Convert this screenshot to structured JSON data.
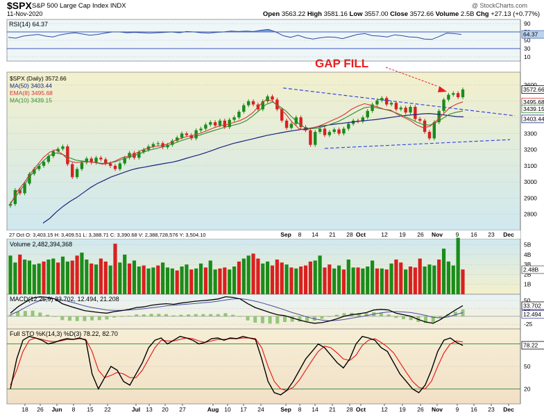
{
  "header": {
    "symbol": "$SPX",
    "subtitle": "S&P 500 Large Cap Index  INDX",
    "date": "11-Nov-2020",
    "credit": "@ StockCharts.com",
    "open_label": "Open",
    "open": "3563.22",
    "high_label": "High",
    "high": "3581.16",
    "low_label": "Low",
    "low": "3557.00",
    "close_label": "Close",
    "close": "3572.66",
    "volume_label": "Volume",
    "volume": "2.5B",
    "chg_label": "Chg",
    "chg": "+27.13 (+0.77%)"
  },
  "colors": {
    "up": "#1a8c1a",
    "down": "#d92020",
    "ma50": "#1a237e",
    "ema8": "#d93333",
    "ma10": "#2e8b2e",
    "trendline": "#3344dd",
    "annotation": "#e62020",
    "rsi_fill": "#5b8fd6",
    "sto_k": "#000000",
    "sto_d": "#e62020",
    "macd_line": "#000000",
    "macd_signal": "#4b4ba0",
    "hist": "#7bbd5c"
  },
  "chart_data": [
    {
      "type": "line",
      "panel": "rsi",
      "legend": "RSI(14) 64.37",
      "ylim": [
        0,
        100
      ],
      "ticks": [
        10,
        30,
        50,
        70,
        90
      ],
      "tag": "64.37",
      "values": [
        57,
        55,
        60,
        62,
        64,
        60,
        58,
        63,
        66,
        68,
        65,
        62,
        64,
        67,
        70,
        70,
        68,
        69,
        68,
        67,
        68,
        69,
        70,
        68,
        71,
        70,
        68,
        67,
        69,
        70,
        72,
        71,
        72,
        71,
        74,
        76,
        70,
        61,
        57,
        62,
        56,
        53,
        56,
        58,
        57,
        54,
        59,
        64,
        66,
        61,
        60,
        58,
        63,
        61,
        58,
        57,
        53,
        52,
        59,
        67,
        66,
        64
      ]
    },
    {
      "type": "candlestick",
      "panel": "price",
      "legend": [
        "$SPX (Daily) 3572.66",
        "MA(50) 3403.44",
        "EMA(8) 3495.68",
        "MA(10) 3439.15"
      ],
      "ylim": [
        2700,
        3680
      ],
      "ticks": [
        2800,
        2900,
        3000,
        3100,
        3200,
        3300,
        3400,
        3500,
        3600
      ],
      "tags": [
        "3572.66",
        "3495.68",
        "3439.15",
        "3403.44"
      ],
      "ohlc_readout": "27 Oct  O: 3,403.15  H: 3,409.51  L: 3,388.71  C: 3,390.68  V: 2,388,728,576  Y: 3,504.10",
      "annotation": "GAP FILL",
      "close": [
        2863,
        2950,
        2930,
        2990,
        3050,
        3080,
        3100,
        3125,
        3160,
        3190,
        3205,
        3220,
        3110,
        3030,
        3080,
        3120,
        3145,
        3120,
        3150,
        3140,
        3115,
        3100,
        3080,
        3115,
        3150,
        3180,
        3150,
        3185,
        3200,
        3220,
        3235,
        3240,
        3215,
        3230,
        3255,
        3275,
        3300,
        3290,
        3270,
        3320,
        3330,
        3355,
        3370,
        3350,
        3380,
        3340,
        3385,
        3400,
        3435,
        3475,
        3500,
        3480,
        3450,
        3500,
        3530,
        3510,
        3450,
        3380,
        3335,
        3360,
        3400,
        3340,
        3320,
        3230,
        3310,
        3330,
        3290,
        3310,
        3325,
        3300,
        3330,
        3360,
        3380,
        3375,
        3400,
        3440,
        3480,
        3505,
        3520,
        3480,
        3490,
        3450,
        3460,
        3430,
        3465,
        3390,
        3380,
        3310,
        3270,
        3370,
        3440,
        3510,
        3540,
        3550,
        3525,
        3573
      ],
      "ma50": [
        2745,
        2775,
        2815,
        2850,
        2880,
        2905,
        2935,
        2965,
        2990,
        3010,
        3030,
        3045,
        3060,
        3075,
        3085,
        3092,
        3100,
        3108,
        3115,
        3122,
        3132,
        3145,
        3157,
        3168,
        3182,
        3196,
        3212,
        3225,
        3238,
        3248,
        3258,
        3268,
        3278,
        3288,
        3296,
        3304,
        3312,
        3318,
        3325,
        3330,
        3338,
        3346,
        3352,
        3358,
        3363,
        3368,
        3373,
        3378,
        3382,
        3386,
        3392,
        3398,
        3404,
        3410,
        3414,
        3418,
        3422,
        3424,
        3420,
        3416,
        3410,
        3405,
        3403
      ],
      "ema8": [
        2860,
        2940,
        2990,
        3050,
        3100,
        3150,
        3185,
        3200,
        3170,
        3130,
        3120,
        3125,
        3125,
        3120,
        3110,
        3115,
        3130,
        3150,
        3160,
        3175,
        3195,
        3210,
        3220,
        3225,
        3235,
        3255,
        3270,
        3282,
        3290,
        3302,
        3318,
        3335,
        3348,
        3355,
        3368,
        3380,
        3400,
        3430,
        3475,
        3510,
        3500,
        3460,
        3420,
        3370,
        3330,
        3320,
        3335,
        3345,
        3362,
        3380,
        3398,
        3420,
        3450,
        3470,
        3485,
        3475,
        3465,
        3450,
        3445,
        3420,
        3400,
        3380,
        3352,
        3335,
        3345,
        3380,
        3420,
        3460,
        3482,
        3496
      ],
      "ma10": [
        2870,
        2920,
        2975,
        3035,
        3085,
        3130,
        3165,
        3180,
        3170,
        3150,
        3135,
        3130,
        3125,
        3120,
        3115,
        3118,
        3125,
        3140,
        3152,
        3165,
        3180,
        3195,
        3205,
        3215,
        3225,
        3240,
        3255,
        3268,
        3280,
        3292,
        3305,
        3318,
        3330,
        3342,
        3352,
        3362,
        3380,
        3410,
        3445,
        3480,
        3495,
        3470,
        3440,
        3400,
        3360,
        3335,
        3330,
        3335,
        3345,
        3360,
        3375,
        3395,
        3418,
        3440,
        3460,
        3465,
        3458,
        3450,
        3440,
        3425,
        3408,
        3390,
        3370,
        3355,
        3352,
        3370,
        3395,
        3420,
        3432,
        3439
      ],
      "trendlines": [
        {
          "from": [
            0,
            3582
          ],
          "to": [
            1,
            3410
          ]
        },
        {
          "from": [
            0,
            3208
          ],
          "to": [
            1,
            3262
          ]
        }
      ]
    },
    {
      "type": "bar",
      "panel": "volume",
      "legend": "Volume 2,482,394,368",
      "ylim": [
        0,
        5.6
      ],
      "ticks": [
        "1B",
        "2B",
        "3B",
        "4B",
        "5B"
      ],
      "tag": "2.48B",
      "unit": "B",
      "values": [
        3.9,
        3.2,
        4.0,
        3.5,
        3.4,
        3.0,
        3.1,
        3.3,
        3.5,
        3.6,
        3.2,
        3.8,
        3.3,
        3.4,
        3.9,
        4.2,
        3.5,
        3.1,
        3.0,
        3.6,
        3.3,
        2.9,
        5.1,
        3.2,
        4.0,
        3.1,
        3.4,
        2.8,
        2.9,
        2.6,
        2.7,
        2.9,
        3.2,
        2.7,
        2.6,
        2.4,
        2.8,
        3.0,
        2.5,
        2.6,
        3.1,
        2.7,
        3.4,
        2.5,
        2.6,
        2.7,
        2.5,
        2.8,
        3.3,
        3.6,
        3.9,
        4.1,
        3.6,
        3.1,
        3.3,
        2.9,
        3.5,
        3.2,
        3.0,
        2.7,
        2.6,
        2.8,
        2.9,
        3.3,
        3.4,
        3.9,
        2.7,
        3.0,
        2.6,
        2.9,
        2.5,
        3.5,
        2.7,
        2.7,
        2.6,
        2.8,
        3.4,
        2.6,
        2.6,
        2.5,
        3.1,
        3.5,
        3.2,
        2.5,
        2.8,
        2.7,
        3.6,
        2.8,
        3.0,
        2.9,
        3.5,
        4.6,
        3.3,
        2.9,
        5.7,
        2.5
      ],
      "up": [
        true,
        true,
        false,
        true,
        true,
        true,
        true,
        false,
        true,
        true,
        false,
        true,
        true,
        false,
        false,
        true,
        true,
        false,
        true,
        false,
        false,
        true,
        false,
        true,
        true,
        false,
        true,
        true,
        false,
        true,
        true,
        false,
        true,
        true,
        true,
        false,
        true,
        true,
        false,
        true,
        true,
        false,
        true,
        true,
        false,
        false,
        true,
        true,
        false,
        true,
        true,
        false,
        false,
        true,
        true,
        false,
        false,
        false,
        true,
        false,
        true,
        false,
        false,
        false,
        true,
        true,
        false,
        false,
        true,
        true,
        false,
        true,
        true,
        false,
        true,
        true,
        true,
        false,
        true,
        false,
        true,
        false,
        false,
        true,
        false,
        false,
        false,
        true,
        true,
        true,
        false,
        true,
        true,
        true,
        true,
        false
      ]
    },
    {
      "type": "line",
      "panel": "macd",
      "legend": "MACD(12,26,9) 33.702, 12.494, 21.208",
      "ylim": [
        -40,
        70
      ],
      "ticks": [
        -25,
        0,
        25,
        50
      ],
      "tags": [
        "33.702",
        "12.494"
      ],
      "macd": [
        10,
        30,
        45,
        58,
        62,
        60,
        55,
        40,
        32,
        25,
        18,
        15,
        12,
        10,
        15,
        18,
        22,
        28,
        30,
        35,
        38,
        40,
        38,
        42,
        45,
        48,
        50,
        52,
        55,
        62,
        60,
        55,
        40,
        28,
        20,
        12,
        5,
        2,
        -5,
        -12,
        -18,
        -22,
        -20,
        -15,
        -8,
        0,
        5,
        8,
        12,
        20,
        22,
        20,
        10,
        5,
        0,
        -10,
        -18,
        -22,
        -10,
        5,
        20,
        34
      ],
      "signal": [
        5,
        15,
        28,
        40,
        50,
        55,
        56,
        52,
        46,
        40,
        33,
        28,
        24,
        20,
        19,
        19,
        20,
        22,
        24,
        27,
        30,
        33,
        35,
        37,
        39,
        41,
        43,
        45,
        48,
        52,
        55,
        56,
        53,
        48,
        42,
        35,
        28,
        20,
        12,
        5,
        -2,
        -8,
        -12,
        -14,
        -13,
        -10,
        -6,
        -2,
        2,
        7,
        11,
        14,
        15,
        14,
        12,
        8,
        3,
        -3,
        -5,
        -2,
        5,
        12
      ]
    },
    {
      "type": "line",
      "panel": "stochastic",
      "legend": "Full STO %K(14,3) %D(3) 78.22, 82.70",
      "ylim": [
        0,
        100
      ],
      "ticks": [
        20,
        50,
        80
      ],
      "tag": "78.22",
      "k": [
        20,
        60,
        85,
        90,
        88,
        85,
        80,
        82,
        85,
        87,
        86,
        88,
        85,
        40,
        20,
        35,
        50,
        45,
        30,
        25,
        40,
        55,
        75,
        85,
        88,
        80,
        85,
        90,
        88,
        85,
        80,
        82,
        87,
        88,
        85,
        88,
        87,
        90,
        88,
        86,
        60,
        30,
        15,
        12,
        18,
        30,
        45,
        60,
        70,
        80,
        75,
        65,
        55,
        48,
        60,
        80,
        90,
        88,
        85,
        75,
        70,
        55,
        40,
        30,
        20,
        15,
        25,
        45,
        70,
        85,
        88,
        82,
        78
      ],
      "d": [
        25,
        45,
        70,
        85,
        88,
        86,
        84,
        83,
        84,
        86,
        86,
        87,
        86,
        70,
        45,
        35,
        38,
        42,
        40,
        35,
        35,
        45,
        60,
        75,
        85,
        84,
        84,
        86,
        88,
        87,
        84,
        82,
        84,
        86,
        86,
        87,
        87,
        88,
        88,
        87,
        75,
        50,
        30,
        20,
        18,
        22,
        32,
        45,
        58,
        70,
        77,
        75,
        68,
        60,
        58,
        65,
        78,
        85,
        87,
        82,
        76,
        68,
        55,
        42,
        30,
        22,
        20,
        30,
        50,
        68,
        80,
        84,
        82.7
      ]
    }
  ],
  "x_axis": {
    "price_panel": [
      "Sep",
      "8",
      "14",
      "21",
      "28",
      "Oct",
      "12",
      "19",
      "26",
      "Nov",
      "9",
      "16",
      "23",
      "Dec"
    ],
    "bottom": [
      "18",
      "26",
      "Jun",
      "8",
      "15",
      "22",
      "Jul",
      "13",
      "20",
      "27",
      "Aug",
      "10",
      "17",
      "24",
      "Sep",
      "8",
      "14",
      "21",
      "28",
      "Oct",
      "12",
      "19",
      "26",
      "Nov",
      "9",
      "16",
      "23",
      "Dec"
    ]
  }
}
